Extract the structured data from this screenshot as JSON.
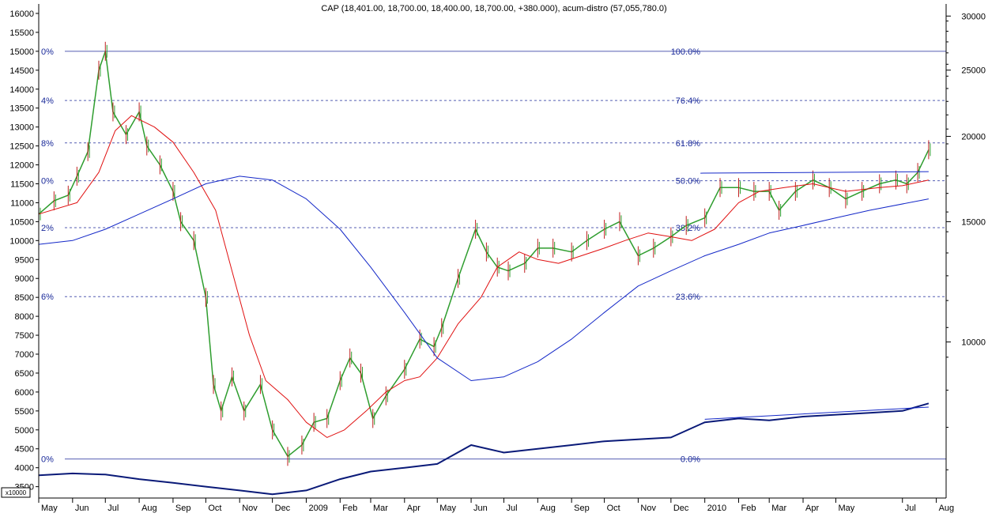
{
  "chart_data": {
    "type": "line",
    "title": "CAP (18,401.00, 18,700.00, 18,400.00, 18,700.00, +380.000), acum-distro (57,055,780.0)",
    "multiplier_label": "x10000",
    "left_axis": {
      "ticks": [
        3500,
        4000,
        4500,
        5000,
        5500,
        6000,
        6500,
        7000,
        7500,
        8000,
        8500,
        9000,
        9500,
        10000,
        10500,
        11000,
        11500,
        12000,
        12500,
        13000,
        13500,
        14000,
        14500,
        15000,
        15500,
        16000
      ],
      "ylim": [
        3200,
        16250
      ]
    },
    "right_axis": {
      "scale": "log",
      "ticks": [
        10000,
        15000,
        20000,
        25000,
        30000
      ]
    },
    "x_axis": {
      "months": [
        "May",
        "Jun",
        "Jul",
        "Aug",
        "Sep",
        "Oct",
        "Nov",
        "Dec",
        "2009",
        "Feb",
        "Mar",
        "Apr",
        "May",
        "Jun",
        "Jul",
        "Aug",
        "Sep",
        "Oct",
        "Nov",
        "Dec",
        "2010",
        "Feb",
        "Mar",
        "Apr",
        "May",
        "Jul",
        "Aug"
      ],
      "range": [
        "2008-05",
        "2010-08"
      ]
    },
    "fibonacci": {
      "left_labels": [
        "0%",
        "4%",
        "8%",
        "0%",
        "2%",
        "6%",
        "0%"
      ],
      "levels": [
        {
          "label": "100.0%",
          "price": 15000
        },
        {
          "label": "76.4%",
          "price": 13700
        },
        {
          "label": "61.8%",
          "price": 12580
        },
        {
          "label": "50.0%",
          "price": 11580
        },
        {
          "label": "38.2%",
          "price": 10340
        },
        {
          "label": "23.6%",
          "price": 8520
        },
        {
          "label": "0.0%",
          "price": 4230
        }
      ]
    },
    "series": [
      {
        "kind": "price",
        "color": "#2e9d2e",
        "points": [
          [
            "2008-05-01",
            10700
          ],
          [
            "2008-05-15",
            11050
          ],
          [
            "2008-05-28",
            11200
          ],
          [
            "2008-06-05",
            11700
          ],
          [
            "2008-06-15",
            12350
          ],
          [
            "2008-06-25",
            14500
          ],
          [
            "2008-07-01",
            15000
          ],
          [
            "2008-07-08",
            13400
          ],
          [
            "2008-07-20",
            12800
          ],
          [
            "2008-08-01",
            13400
          ],
          [
            "2008-08-08",
            12500
          ],
          [
            "2008-08-20",
            12000
          ],
          [
            "2008-09-01",
            11300
          ],
          [
            "2008-09-08",
            10500
          ],
          [
            "2008-09-20",
            10000
          ],
          [
            "2008-10-01",
            8500
          ],
          [
            "2008-10-08",
            6200
          ],
          [
            "2008-10-15",
            5500
          ],
          [
            "2008-10-25",
            6400
          ],
          [
            "2008-11-05",
            5500
          ],
          [
            "2008-11-20",
            6200
          ],
          [
            "2008-12-01",
            5000
          ],
          [
            "2008-12-15",
            4300
          ],
          [
            "2008-12-28",
            4600
          ],
          [
            "2009-01-08",
            5200
          ],
          [
            "2009-01-20",
            5300
          ],
          [
            "2009-02-01",
            6300
          ],
          [
            "2009-02-10",
            6900
          ],
          [
            "2009-02-20",
            6500
          ],
          [
            "2009-03-03",
            5300
          ],
          [
            "2009-03-15",
            5900
          ],
          [
            "2009-04-01",
            6600
          ],
          [
            "2009-04-15",
            7400
          ],
          [
            "2009-04-28",
            7200
          ],
          [
            "2009-05-05",
            7700
          ],
          [
            "2009-05-20",
            9000
          ],
          [
            "2009-06-05",
            10300
          ],
          [
            "2009-06-15",
            9700
          ],
          [
            "2009-06-25",
            9300
          ],
          [
            "2009-07-05",
            9200
          ],
          [
            "2009-07-20",
            9400
          ],
          [
            "2009-08-01",
            9800
          ],
          [
            "2009-08-15",
            9800
          ],
          [
            "2009-09-01",
            9700
          ],
          [
            "2009-09-15",
            10000
          ],
          [
            "2009-10-01",
            10300
          ],
          [
            "2009-10-15",
            10500
          ],
          [
            "2009-11-01",
            9600
          ],
          [
            "2009-11-15",
            9800
          ],
          [
            "2009-12-01",
            10100
          ],
          [
            "2009-12-15",
            10400
          ],
          [
            "2010-01-01",
            10600
          ],
          [
            "2010-01-15",
            11400
          ],
          [
            "2010-02-01",
            11400
          ],
          [
            "2010-02-15",
            11300
          ],
          [
            "2010-03-01",
            11300
          ],
          [
            "2010-03-10",
            10800
          ],
          [
            "2010-03-25",
            11300
          ],
          [
            "2010-04-10",
            11600
          ],
          [
            "2010-04-25",
            11400
          ],
          [
            "2010-05-10",
            11100
          ],
          [
            "2010-05-25",
            11300
          ],
          [
            "2010-06-10",
            11500
          ],
          [
            "2010-06-25",
            11600
          ],
          [
            "2010-07-05",
            11500
          ],
          [
            "2010-07-15",
            11800
          ],
          [
            "2010-07-25",
            12400
          ]
        ]
      },
      {
        "kind": "moving-average-short",
        "color": "#e01010",
        "points": [
          [
            "2008-05-01",
            10700
          ],
          [
            "2008-06-05",
            11000
          ],
          [
            "2008-06-25",
            11800
          ],
          [
            "2008-07-10",
            12900
          ],
          [
            "2008-07-25",
            13300
          ],
          [
            "2008-08-15",
            13000
          ],
          [
            "2008-09-01",
            12600
          ],
          [
            "2008-09-20",
            11800
          ],
          [
            "2008-10-10",
            10800
          ],
          [
            "2008-10-25",
            9200
          ],
          [
            "2008-11-10",
            7500
          ],
          [
            "2008-11-25",
            6300
          ],
          [
            "2008-12-15",
            5800
          ],
          [
            "2009-01-01",
            5200
          ],
          [
            "2009-01-20",
            4800
          ],
          [
            "2009-02-05",
            5000
          ],
          [
            "2009-02-25",
            5500
          ],
          [
            "2009-03-15",
            6000
          ],
          [
            "2009-04-01",
            6300
          ],
          [
            "2009-04-15",
            6400
          ],
          [
            "2009-05-01",
            6900
          ],
          [
            "2009-05-20",
            7800
          ],
          [
            "2009-06-10",
            8500
          ],
          [
            "2009-06-25",
            9300
          ],
          [
            "2009-07-15",
            9700
          ],
          [
            "2009-08-01",
            9500
          ],
          [
            "2009-08-20",
            9400
          ],
          [
            "2009-09-10",
            9600
          ],
          [
            "2009-10-01",
            9800
          ],
          [
            "2009-10-20",
            10000
          ],
          [
            "2009-11-10",
            10200
          ],
          [
            "2009-12-01",
            10100
          ],
          [
            "2009-12-20",
            10000
          ],
          [
            "2010-01-10",
            10300
          ],
          [
            "2010-02-01",
            11000
          ],
          [
            "2010-02-20",
            11300
          ],
          [
            "2010-03-15",
            11400
          ],
          [
            "2010-04-10",
            11500
          ],
          [
            "2010-05-10",
            11300
          ],
          [
            "2010-06-10",
            11400
          ],
          [
            "2010-07-01",
            11450
          ],
          [
            "2010-07-25",
            11600
          ]
        ]
      },
      {
        "kind": "moving-average-long",
        "color": "#1428c8",
        "points": [
          [
            "2008-05-01",
            9900
          ],
          [
            "2008-06-01",
            10000
          ],
          [
            "2008-07-01",
            10300
          ],
          [
            "2008-08-01",
            10700
          ],
          [
            "2008-09-01",
            11100
          ],
          [
            "2008-10-01",
            11500
          ],
          [
            "2008-11-01",
            11700
          ],
          [
            "2008-12-01",
            11600
          ],
          [
            "2009-01-01",
            11100
          ],
          [
            "2009-02-01",
            10300
          ],
          [
            "2009-03-01",
            9300
          ],
          [
            "2009-04-01",
            8100
          ],
          [
            "2009-05-01",
            6900
          ],
          [
            "2009-06-01",
            6300
          ],
          [
            "2009-07-01",
            6400
          ],
          [
            "2009-08-01",
            6800
          ],
          [
            "2009-09-01",
            7400
          ],
          [
            "2009-10-01",
            8100
          ],
          [
            "2009-11-01",
            8800
          ],
          [
            "2009-12-01",
            9200
          ],
          [
            "2010-01-01",
            9600
          ],
          [
            "2010-02-01",
            9900
          ],
          [
            "2010-03-01",
            10200
          ],
          [
            "2010-04-01",
            10400
          ],
          [
            "2010-05-01",
            10600
          ],
          [
            "2010-06-01",
            10800
          ],
          [
            "2010-07-25",
            11100
          ]
        ]
      },
      {
        "kind": "accumulation-distribution",
        "color": "#0a1a78",
        "points": [
          [
            "2008-05-01",
            3800
          ],
          [
            "2008-06-01",
            3850
          ],
          [
            "2008-07-01",
            3820
          ],
          [
            "2008-08-01",
            3700
          ],
          [
            "2008-09-01",
            3600
          ],
          [
            "2008-10-01",
            3500
          ],
          [
            "2008-11-01",
            3400
          ],
          [
            "2008-12-01",
            3300
          ],
          [
            "2009-01-01",
            3400
          ],
          [
            "2009-02-01",
            3700
          ],
          [
            "2009-03-01",
            3900
          ],
          [
            "2009-04-01",
            4000
          ],
          [
            "2009-05-01",
            4100
          ],
          [
            "2009-06-01",
            4600
          ],
          [
            "2009-07-01",
            4400
          ],
          [
            "2009-08-01",
            4500
          ],
          [
            "2009-09-01",
            4600
          ],
          [
            "2009-10-01",
            4700
          ],
          [
            "2009-11-01",
            4750
          ],
          [
            "2009-12-01",
            4800
          ],
          [
            "2010-01-01",
            5200
          ],
          [
            "2010-02-01",
            5300
          ],
          [
            "2010-03-01",
            5250
          ],
          [
            "2010-04-01",
            5350
          ],
          [
            "2010-05-01",
            5400
          ],
          [
            "2010-06-01",
            5450
          ],
          [
            "2010-07-01",
            5500
          ],
          [
            "2010-07-25",
            5700
          ]
        ]
      }
    ],
    "trendlines": [
      {
        "color": "#1428c8",
        "from": [
          "2009-12-28",
          11780
        ],
        "to": [
          "2010-07-25",
          11820
        ]
      },
      {
        "color": "#1428c8",
        "from": [
          "2010-01-01",
          5280
        ],
        "to": [
          "2010-07-25",
          5600
        ]
      }
    ],
    "grid": "dashed horizontal at fibonacci levels"
  }
}
